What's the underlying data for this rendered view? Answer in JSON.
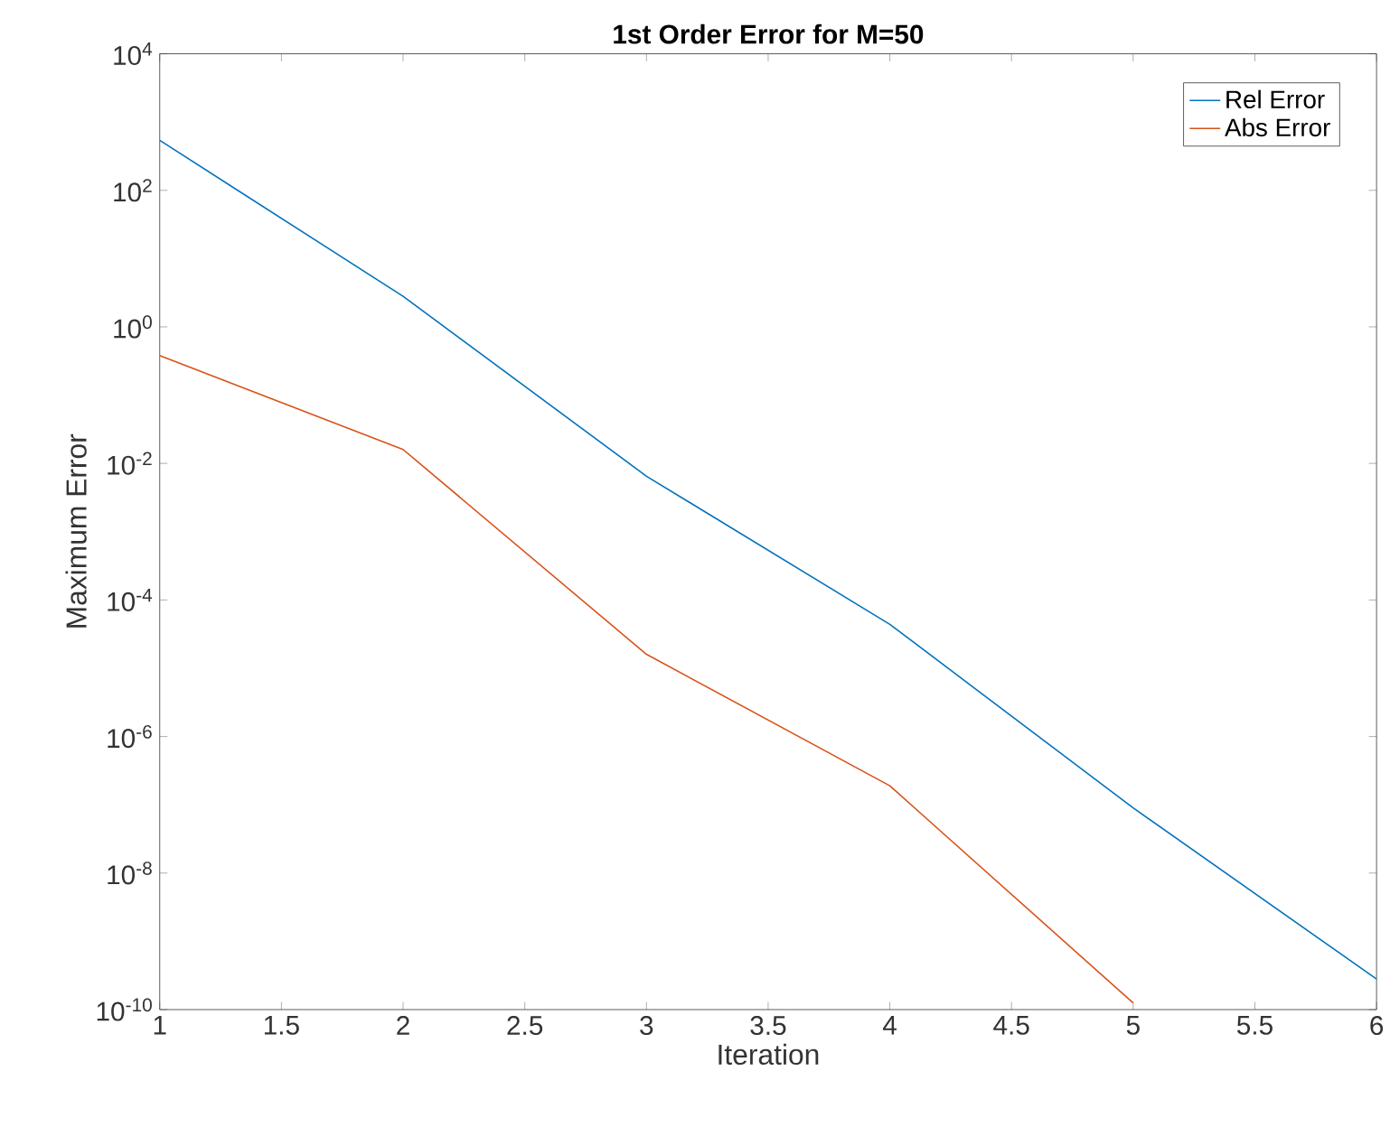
{
  "chart_data": {
    "type": "line",
    "title": "1st Order Error for M=50",
    "xlabel": "Iteration",
    "ylabel": "Maximum Error",
    "log": "y",
    "legend": "top right",
    "x": [
      1,
      2,
      3,
      4,
      5,
      6
    ],
    "series": [
      {
        "name": "Rel Error",
        "color": "#0072bd",
        "values": [
          540,
          2.8,
          0.0065,
          4.4e-05,
          9e-08,
          2.8e-10
        ]
      },
      {
        "name": "Abs Error",
        "color": "#d95319",
        "values": [
          0.38,
          0.016,
          1.6e-05,
          1.9e-07,
          1.25e-10,
          null
        ]
      }
    ],
    "xlim": [
      1,
      6
    ],
    "ylim": [
      1e-10,
      10000.0
    ],
    "xticks": [
      1,
      1.5,
      2,
      2.5,
      3,
      3.5,
      4,
      4.5,
      5,
      5.5,
      6
    ],
    "yticks": [
      {
        "value": 1e-10,
        "label": "10$^{-10}$"
      },
      {
        "value": 1e-08,
        "label": "10$^{-8}$"
      },
      {
        "value": 1e-06,
        "label": "10$^{-6}$"
      },
      {
        "value": 0.0001,
        "label": "10$^{-4}$"
      },
      {
        "value": 0.01,
        "label": "10$^{-2}$"
      },
      {
        "value": 1,
        "label": "10$^{0}$"
      },
      {
        "value": 100,
        "label": "10$^{2}$"
      },
      {
        "value": 10000,
        "label": "10$^{4}$"
      }
    ]
  }
}
